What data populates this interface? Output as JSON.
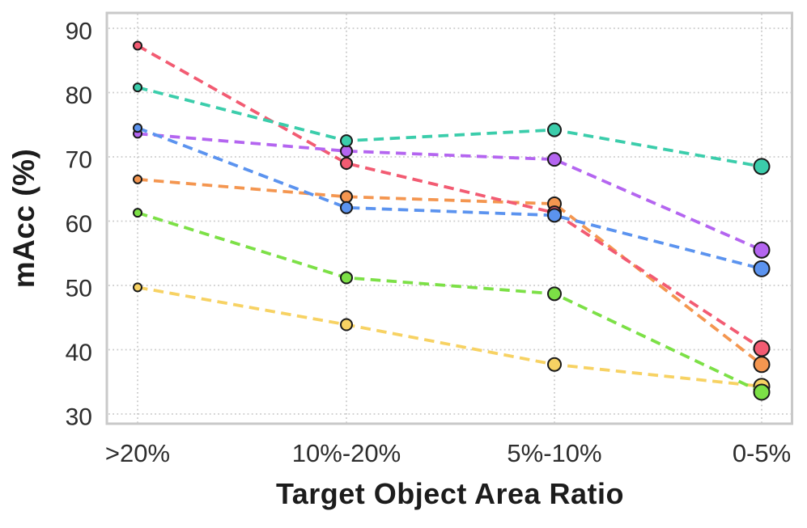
{
  "chart_data": {
    "type": "line",
    "title": "",
    "xlabel": "Target Object Area Ratio",
    "ylabel": "mAcc (%)",
    "categories": [
      ">20%",
      "10%-20%",
      "5%-10%",
      "0-5%"
    ],
    "yticks": [
      90,
      80,
      70,
      60,
      50,
      40,
      30
    ],
    "ylim": [
      28,
      93
    ],
    "grid": "dotted-both-axes",
    "legend": "none",
    "line_style": "dashed",
    "marker": "circle-black-edge-growing-size",
    "series": [
      {
        "name": "red",
        "color": "#F25B72",
        "values": [
          87.3,
          69.0,
          61.3,
          40.2
        ]
      },
      {
        "name": "teal",
        "color": "#3BCDAB",
        "values": [
          80.8,
          72.5,
          74.2,
          68.5
        ]
      },
      {
        "name": "blue",
        "color": "#5B93EF",
        "values": [
          74.5,
          62.1,
          60.9,
          52.6
        ]
      },
      {
        "name": "purple",
        "color": "#B465F0",
        "values": [
          73.6,
          70.9,
          69.6,
          55.5
        ]
      },
      {
        "name": "orange",
        "color": "#F49650",
        "values": [
          66.5,
          63.8,
          62.7,
          37.7
        ]
      },
      {
        "name": "green",
        "color": "#7CE046",
        "values": [
          61.3,
          51.2,
          48.7,
          33.4
        ]
      },
      {
        "name": "yellow",
        "color": "#F7D263",
        "values": [
          49.7,
          43.9,
          37.7,
          34.3
        ]
      }
    ],
    "style": {
      "marker_radii": [
        5,
        7,
        8,
        9.5
      ],
      "marker_stroke": "#1a1a1a",
      "marker_stroke_width": 2,
      "draw_order": [
        "yellow",
        "green",
        "orange",
        "red",
        "purple",
        "blue",
        "teal"
      ],
      "line_width": 3.8,
      "line_dash": "12.5 7.5",
      "grid_color": "#cbcbcb",
      "border_color": "#c9c9c9",
      "tick_text_color": "#2d2d2d"
    }
  }
}
